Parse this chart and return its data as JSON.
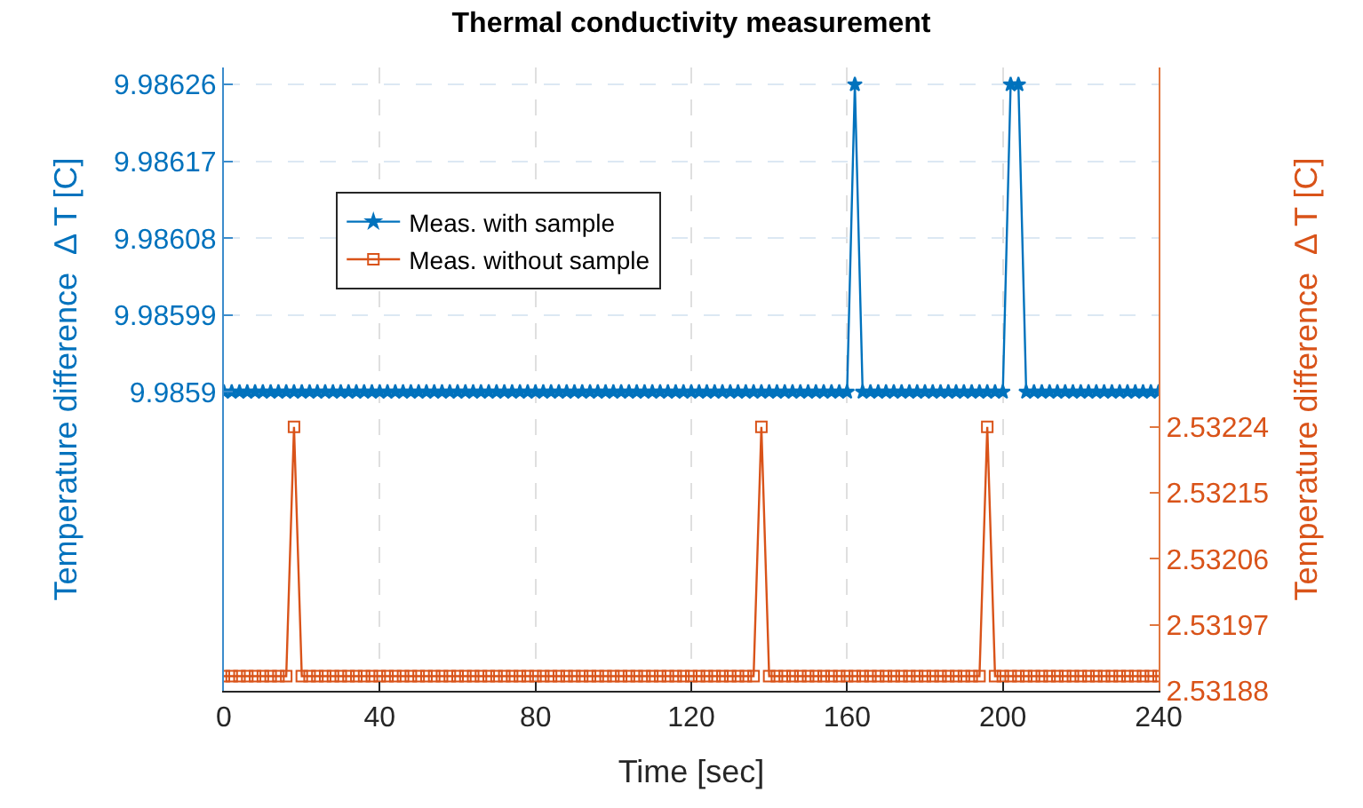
{
  "chart_data": {
    "type": "line",
    "title": "Thermal conductivity measurement",
    "xlabel": "Time [sec]",
    "ylabel": "Temperature difference  Δ T [C]",
    "y2label": "Temperature difference  Δ T [C]",
    "x": [
      0,
      2,
      4,
      6,
      8,
      10,
      12,
      14,
      16,
      18,
      20,
      22,
      24,
      26,
      28,
      30,
      32,
      34,
      36,
      38,
      40,
      42,
      44,
      46,
      48,
      50,
      52,
      54,
      56,
      58,
      60,
      62,
      64,
      66,
      68,
      70,
      72,
      74,
      76,
      78,
      80,
      82,
      84,
      86,
      88,
      90,
      92,
      94,
      96,
      98,
      100,
      102,
      104,
      106,
      108,
      110,
      112,
      114,
      116,
      118,
      120,
      122,
      124,
      126,
      128,
      130,
      132,
      134,
      136,
      138,
      140,
      142,
      144,
      146,
      148,
      150,
      152,
      154,
      156,
      158,
      160,
      162,
      164,
      166,
      168,
      170,
      172,
      174,
      176,
      178,
      180,
      182,
      184,
      186,
      188,
      190,
      192,
      194,
      196,
      198,
      200,
      202,
      204,
      206,
      208,
      210,
      212,
      214,
      216,
      218,
      220,
      222,
      224,
      226,
      228,
      230,
      232,
      234,
      236,
      238,
      240
    ],
    "series": [
      {
        "name": "Meas. with sample",
        "color": "#0072bd",
        "marker": "star",
        "values": [
          9.9859,
          9.9859,
          9.9859,
          9.9859,
          9.9859,
          9.9859,
          9.9859,
          9.9859,
          9.9859,
          9.9859,
          9.9859,
          9.9859,
          9.9859,
          9.9859,
          9.9859,
          9.9859,
          9.9859,
          9.9859,
          9.9859,
          9.9859,
          9.9859,
          9.9859,
          9.9859,
          9.9859,
          9.9859,
          9.9859,
          9.9859,
          9.9859,
          9.9859,
          9.9859,
          9.9859,
          9.9859,
          9.9859,
          9.9859,
          9.9859,
          9.9859,
          9.9859,
          9.9859,
          9.9859,
          9.9859,
          9.9859,
          9.9859,
          9.9859,
          9.9859,
          9.9859,
          9.9859,
          9.9859,
          9.9859,
          9.9859,
          9.9859,
          9.9859,
          9.9859,
          9.9859,
          9.9859,
          9.9859,
          9.9859,
          9.9859,
          9.9859,
          9.9859,
          9.9859,
          9.9859,
          9.9859,
          9.9859,
          9.9859,
          9.9859,
          9.9859,
          9.9859,
          9.9859,
          9.9859,
          9.9859,
          9.9859,
          9.9859,
          9.9859,
          9.9859,
          9.9859,
          9.9859,
          9.9859,
          9.9859,
          9.9859,
          9.9859,
          9.9859,
          9.98626,
          9.9859,
          9.9859,
          9.9859,
          9.9859,
          9.9859,
          9.9859,
          9.9859,
          9.9859,
          9.9859,
          9.9859,
          9.9859,
          9.9859,
          9.9859,
          9.9859,
          9.9859,
          9.9859,
          9.9859,
          9.9859,
          9.9859,
          9.98626,
          9.98626,
          9.9859,
          9.9859,
          9.9859,
          9.9859,
          9.9859,
          9.9859,
          9.9859,
          9.9859,
          9.9859,
          9.9859,
          9.9859,
          9.9859,
          9.9859,
          9.9859,
          9.9859,
          9.9859,
          9.9859,
          9.9859
        ]
      },
      {
        "name": "Meas. without sample",
        "color": "#d95319",
        "marker": "square",
        "axis": "y2",
        "values": [
          2.5319,
          2.5319,
          2.5319,
          2.5319,
          2.5319,
          2.5319,
          2.5319,
          2.5319,
          2.5319,
          2.53224,
          2.5319,
          2.5319,
          2.5319,
          2.5319,
          2.5319,
          2.5319,
          2.5319,
          2.5319,
          2.5319,
          2.5319,
          2.5319,
          2.5319,
          2.5319,
          2.5319,
          2.5319,
          2.5319,
          2.5319,
          2.5319,
          2.5319,
          2.5319,
          2.5319,
          2.5319,
          2.5319,
          2.5319,
          2.5319,
          2.5319,
          2.5319,
          2.5319,
          2.5319,
          2.5319,
          2.5319,
          2.5319,
          2.5319,
          2.5319,
          2.5319,
          2.5319,
          2.5319,
          2.5319,
          2.5319,
          2.5319,
          2.5319,
          2.5319,
          2.5319,
          2.5319,
          2.5319,
          2.5319,
          2.5319,
          2.5319,
          2.5319,
          2.5319,
          2.5319,
          2.5319,
          2.5319,
          2.5319,
          2.5319,
          2.5319,
          2.5319,
          2.5319,
          2.5319,
          2.53224,
          2.5319,
          2.5319,
          2.5319,
          2.5319,
          2.5319,
          2.5319,
          2.5319,
          2.5319,
          2.5319,
          2.5319,
          2.5319,
          2.5319,
          2.5319,
          2.5319,
          2.5319,
          2.5319,
          2.5319,
          2.5319,
          2.5319,
          2.5319,
          2.5319,
          2.5319,
          2.5319,
          2.5319,
          2.5319,
          2.5319,
          2.5319,
          2.5319,
          2.53224,
          2.5319,
          2.5319,
          2.5319,
          2.5319,
          2.5319,
          2.5319,
          2.5319,
          2.5319,
          2.5319,
          2.5319,
          2.5319,
          2.5319,
          2.5319,
          2.5319,
          2.5319,
          2.5319,
          2.5319,
          2.5319,
          2.5319,
          2.5319,
          2.5319,
          2.5319
        ]
      }
    ],
    "xlim": [
      0,
      240
    ],
    "xticks": [
      0,
      40,
      80,
      120,
      160,
      200,
      240
    ],
    "ylim": [
      9.98555,
      9.98628
    ],
    "yticks": [
      9.9859,
      9.98599,
      9.98608,
      9.98617,
      9.98626
    ],
    "y2lim": [
      2.53188,
      2.53273
    ],
    "y2ticks": [
      2.53188,
      2.53197,
      2.53206,
      2.53215,
      2.53224
    ],
    "grid": true,
    "legend": "top left",
    "line_style": "solid"
  }
}
